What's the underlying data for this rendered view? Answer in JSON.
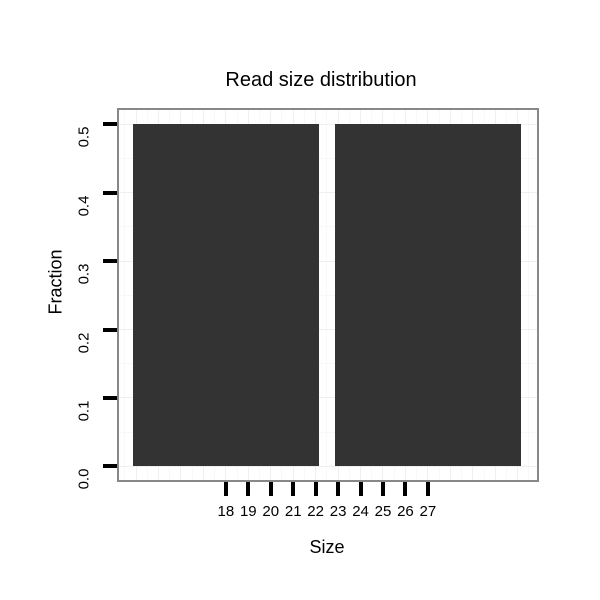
{
  "chart_data": {
    "type": "bar",
    "title": "Read size distribution",
    "xlabel": "Size",
    "ylabel": "Fraction",
    "x_tick_values": [
      18,
      19,
      20,
      21,
      22,
      23,
      24,
      25,
      26,
      27
    ],
    "x_tick_labels": [
      "18",
      "19",
      "20",
      "21",
      "22",
      "23",
      "24",
      "25",
      "26",
      "27"
    ],
    "y_tick_values": [
      0.0,
      0.1,
      0.2,
      0.3,
      0.4,
      0.5
    ],
    "y_tick_labels": [
      "0.0",
      "0.1",
      "0.2",
      "0.3",
      "0.4",
      "0.5"
    ],
    "bars": [
      {
        "x": 18,
        "height": 0.5
      },
      {
        "x": 27,
        "height": 0.5
      }
    ],
    "bar_width": 8.3,
    "xlim": [
      13.15,
      31.95
    ],
    "ylim": [
      -0.023,
      0.524
    ],
    "grid": {
      "visible": true,
      "x_major_step": 1,
      "x_minor_step": 0.5,
      "y_major_step": 0.1,
      "y_minor_step": 0.05
    },
    "colors": {
      "bar": "#333333",
      "panel_border": "#888888",
      "panel_bg": "#ffffff",
      "background": "#ffffff",
      "grid_major": "#efefef",
      "grid_minor": "#f8f8f8",
      "tick_mark": "#000000",
      "text": "#000000"
    }
  }
}
